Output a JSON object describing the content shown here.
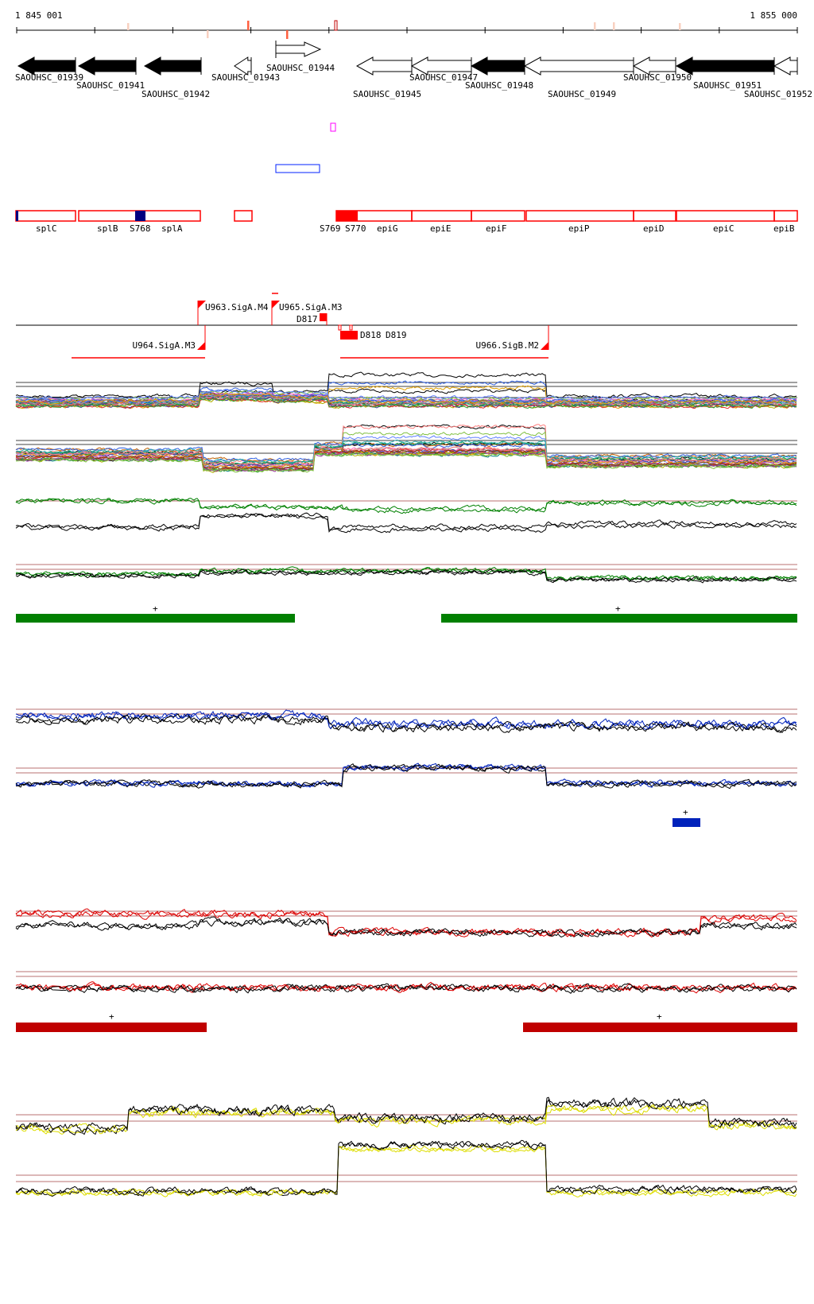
{
  "axis": {
    "start_label": "1 845 001",
    "end_label": "1 855 000"
  },
  "genes": [
    {
      "name": "SAOUHSC_01939",
      "strand": "-",
      "fill": "black"
    },
    {
      "name": "SAOUHSC_01941",
      "strand": "-",
      "fill": "black"
    },
    {
      "name": "SAOUHSC_01942",
      "strand": "-",
      "fill": "black"
    },
    {
      "name": "SAOUHSC_01943",
      "strand": "-",
      "fill": "white"
    },
    {
      "name": "SAOUHSC_01944",
      "strand": "+",
      "fill": "white"
    },
    {
      "name": "SAOUHSC_01945",
      "strand": "-",
      "fill": "white"
    },
    {
      "name": "SAOUHSC_01947",
      "strand": "-",
      "fill": "white"
    },
    {
      "name": "SAOUHSC_01948",
      "strand": "-",
      "fill": "black"
    },
    {
      "name": "SAOUHSC_01949",
      "strand": "-",
      "fill": "white"
    },
    {
      "name": "SAOUHSC_01950",
      "strand": "-",
      "fill": "white"
    },
    {
      "name": "SAOUHSC_01951",
      "strand": "-",
      "fill": "black"
    },
    {
      "name": "SAOUHSC_01952",
      "strand": "-",
      "fill": "white"
    }
  ],
  "operon_labels": [
    "splC",
    "splB",
    "S768",
    "splA",
    "S769",
    "S770",
    "epiG",
    "epiE",
    "epiF",
    "epiP",
    "epiD",
    "epiC",
    "epiB"
  ],
  "promoters": {
    "up": [
      "U963.SigA.M4",
      "U965.SigA.M3",
      "D817"
    ],
    "down": [
      "U964.SigA.M3",
      "D818",
      "D819",
      "U966.SigB.M2"
    ]
  },
  "segments_plus": "+",
  "colors": {
    "green": "#008000",
    "blue": "#0022bb",
    "red": "#c00000",
    "yellow": "#dddd00",
    "feature_red": "#ff0000",
    "navy": "#000080",
    "magenta": "#ff00ff",
    "ref_line": "#a04040"
  }
}
